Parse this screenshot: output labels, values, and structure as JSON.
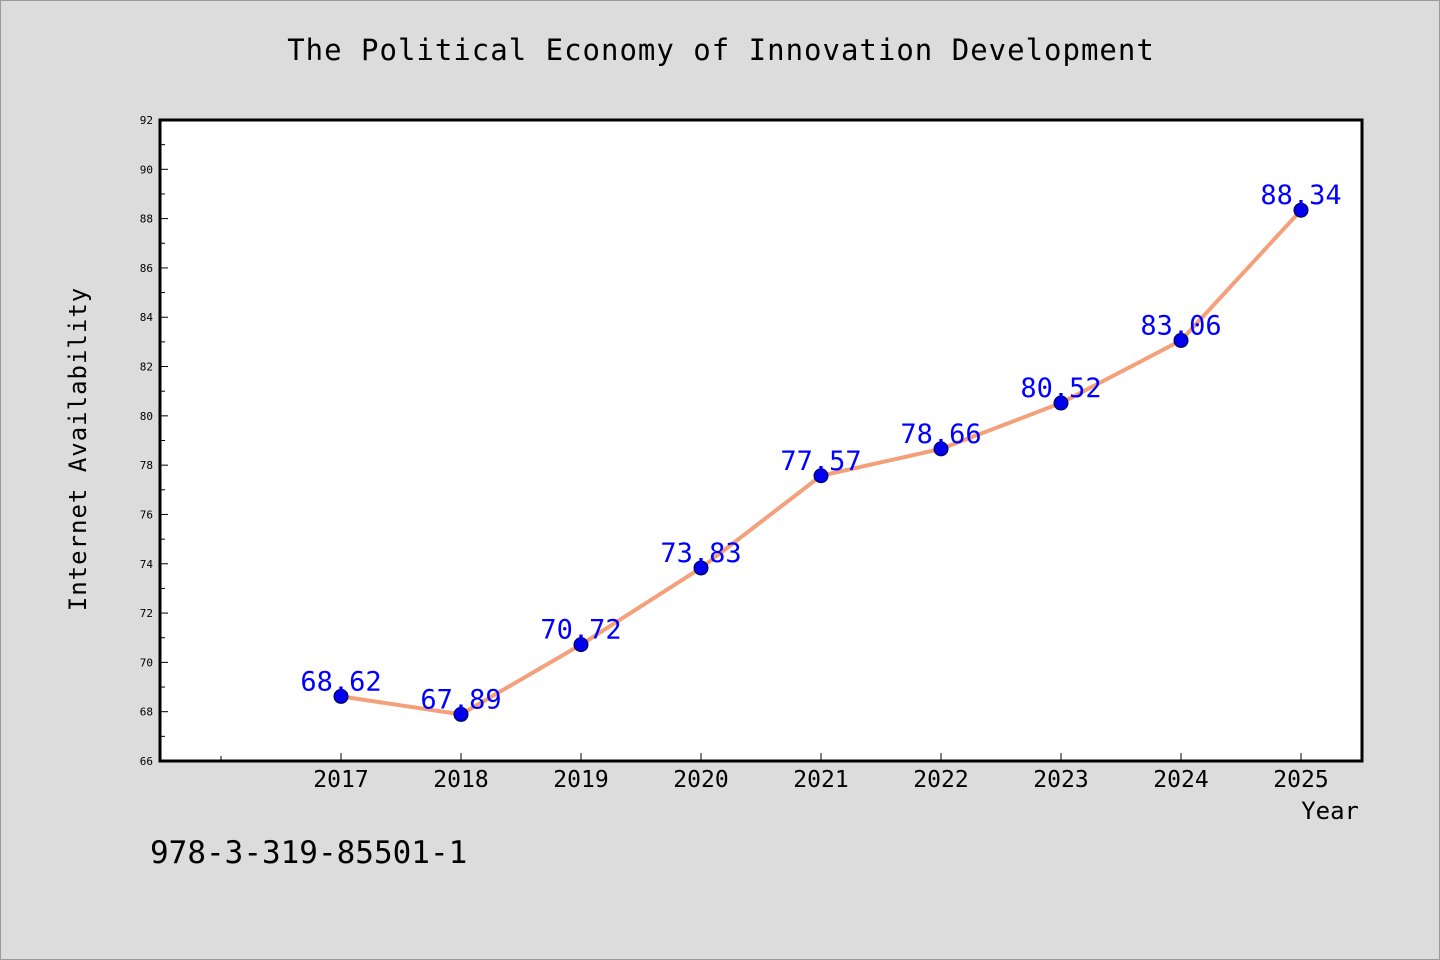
{
  "chart_data": {
    "type": "line",
    "title": "The Political Economy of Innovation Development",
    "xlabel": "Year",
    "ylabel": "Internet Availability",
    "categories": [
      "2017",
      "2018",
      "2019",
      "2020",
      "2021",
      "2022",
      "2023",
      "2024",
      "2025"
    ],
    "series": [
      {
        "values": [
          68.62,
          67.89,
          70.72,
          73.83,
          77.57,
          78.66,
          80.52,
          83.06,
          88.34
        ],
        "line_color": "#f4a07a",
        "marker_color": "#0000ee"
      }
    ],
    "data_labels": [
      "68.62",
      "67.89",
      "70.72",
      "73.83",
      "77.57",
      "78.66",
      "80.52",
      "83.06",
      "88.34"
    ],
    "data_label_color": "#0000ff",
    "ylim": [
      66,
      92
    ],
    "y_ticks": [
      "66",
      "68",
      "70",
      "72",
      "74",
      "76",
      "78",
      "80",
      "82",
      "84",
      "86",
      "88",
      "90",
      "92"
    ],
    "grid": false,
    "legend": false
  },
  "footer": {
    "isbn": "978-3-319-85501-1"
  }
}
